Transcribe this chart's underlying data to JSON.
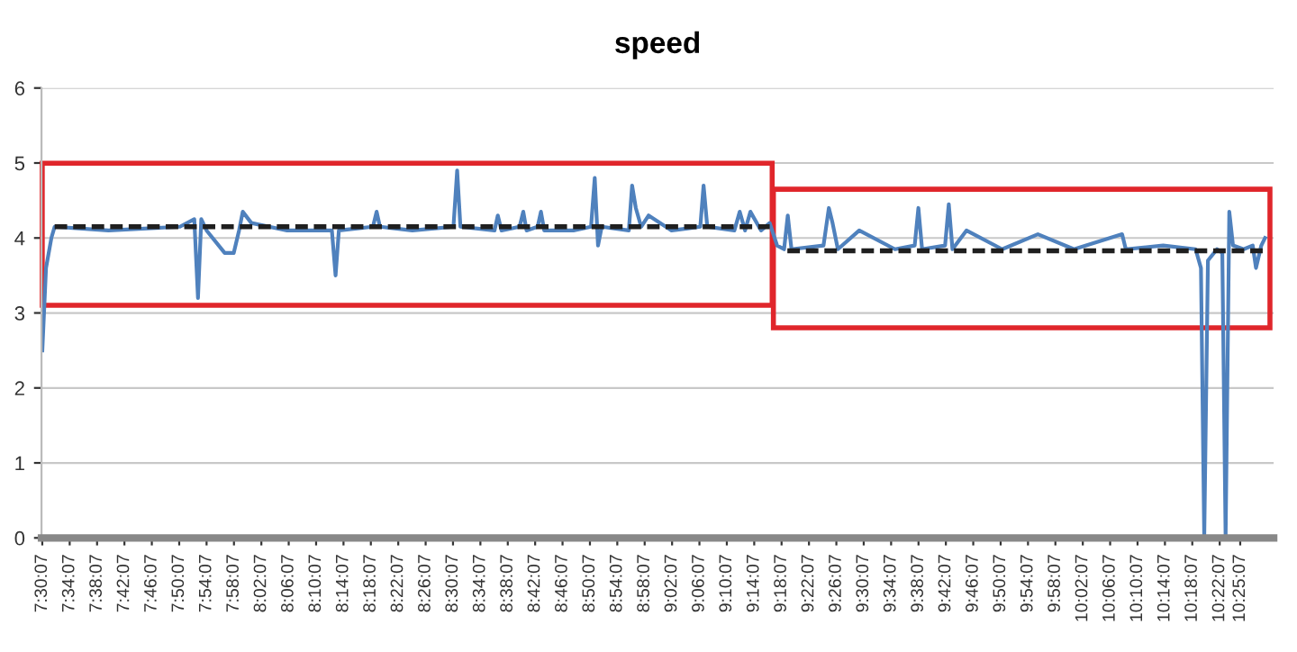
{
  "chart_data": {
    "type": "line",
    "title": "speed",
    "grid": "y",
    "marker": "none",
    "line_style": "solid",
    "xlim": [
      7.5,
      10.5
    ],
    "ylim": [
      0,
      6
    ],
    "yticks": [
      0,
      1,
      2,
      3,
      4,
      5,
      6
    ],
    "xticks": [
      {
        "value": 7.5019,
        "label": "7:30:07"
      },
      {
        "value": 7.5686,
        "label": "7:34:07"
      },
      {
        "value": 7.6353,
        "label": "7:38:07"
      },
      {
        "value": 7.7019,
        "label": "7:42:07"
      },
      {
        "value": 7.7686,
        "label": "7:46:07"
      },
      {
        "value": 7.8353,
        "label": "7:50:07"
      },
      {
        "value": 7.9019,
        "label": "7:54:07"
      },
      {
        "value": 7.9686,
        "label": "7:58:07"
      },
      {
        "value": 8.0353,
        "label": "8:02:07"
      },
      {
        "value": 8.1019,
        "label": "8:06:07"
      },
      {
        "value": 8.1686,
        "label": "8:10:07"
      },
      {
        "value": 8.2353,
        "label": "8:14:07"
      },
      {
        "value": 8.3019,
        "label": "8:18:07"
      },
      {
        "value": 8.3686,
        "label": "8:22:07"
      },
      {
        "value": 8.4353,
        "label": "8:26:07"
      },
      {
        "value": 8.5019,
        "label": "8:30:07"
      },
      {
        "value": 8.5686,
        "label": "8:34:07"
      },
      {
        "value": 8.6353,
        "label": "8:38:07"
      },
      {
        "value": 8.7019,
        "label": "8:42:07"
      },
      {
        "value": 8.7686,
        "label": "8:46:07"
      },
      {
        "value": 8.8353,
        "label": "8:50:07"
      },
      {
        "value": 8.9019,
        "label": "8:54:07"
      },
      {
        "value": 8.9686,
        "label": "8:58:07"
      },
      {
        "value": 9.0353,
        "label": "9:02:07"
      },
      {
        "value": 9.1019,
        "label": "9:06:07"
      },
      {
        "value": 9.1686,
        "label": "9:10:07"
      },
      {
        "value": 9.2353,
        "label": "9:14:07"
      },
      {
        "value": 9.3019,
        "label": "9:18:07"
      },
      {
        "value": 9.3686,
        "label": "9:22:07"
      },
      {
        "value": 9.4353,
        "label": "9:26:07"
      },
      {
        "value": 9.5019,
        "label": "9:30:07"
      },
      {
        "value": 9.5686,
        "label": "9:34:07"
      },
      {
        "value": 9.6353,
        "label": "9:38:07"
      },
      {
        "value": 9.7019,
        "label": "9:42:07"
      },
      {
        "value": 9.7686,
        "label": "9:46:07"
      },
      {
        "value": 9.8353,
        "label": "9:50:07"
      },
      {
        "value": 9.9019,
        "label": "9:54:07"
      },
      {
        "value": 9.9686,
        "label": "9:58:07"
      },
      {
        "value": 10.0353,
        "label": "10:02:07"
      },
      {
        "value": 10.1019,
        "label": "10:06:07"
      },
      {
        "value": 10.1686,
        "label": "10:10:07"
      },
      {
        "value": 10.2353,
        "label": "10:14:07"
      },
      {
        "value": 10.3019,
        "label": "10:18:07"
      },
      {
        "value": 10.3686,
        "label": "10:22:07"
      },
      {
        "value": 10.4186,
        "label": "10:25:07"
      }
    ],
    "series": [
      {
        "color": "#4f81bd",
        "x": [
          7.502,
          7.511,
          7.524,
          7.532,
          7.663,
          7.837,
          7.872,
          7.881,
          7.889,
          7.902,
          7.946,
          7.968,
          7.981,
          7.99,
          8.011,
          8.098,
          8.207,
          8.216,
          8.224,
          8.307,
          8.316,
          8.324,
          8.403,
          8.503,
          8.512,
          8.52,
          8.603,
          8.611,
          8.62,
          8.664,
          8.673,
          8.681,
          8.708,
          8.716,
          8.724,
          8.795,
          8.838,
          8.847,
          8.855,
          8.864,
          8.93,
          8.938,
          8.947,
          8.96,
          8.978,
          9.034,
          9.104,
          9.112,
          9.121,
          9.187,
          9.2,
          9.213,
          9.226,
          9.252,
          9.273,
          9.291,
          9.308,
          9.317,
          9.326,
          9.404,
          9.417,
          9.426,
          9.439,
          9.491,
          9.578,
          9.626,
          9.635,
          9.644,
          9.7,
          9.709,
          9.718,
          9.752,
          9.839,
          9.926,
          10.014,
          10.131,
          10.14,
          10.231,
          10.31,
          10.323,
          10.331,
          10.34,
          10.362,
          10.375,
          10.383,
          10.392,
          10.401,
          10.427,
          10.449,
          10.457,
          10.47,
          10.479
        ],
        "values": [
          2.5,
          3.6,
          4.0,
          4.15,
          4.1,
          4.15,
          4.25,
          3.2,
          4.25,
          4.1,
          3.8,
          3.8,
          4.1,
          4.35,
          4.2,
          4.1,
          4.1,
          3.5,
          4.1,
          4.15,
          4.35,
          4.15,
          4.1,
          4.15,
          4.9,
          4.15,
          4.1,
          4.3,
          4.1,
          4.15,
          4.35,
          4.1,
          4.15,
          4.35,
          4.1,
          4.1,
          4.15,
          4.8,
          3.9,
          4.15,
          4.1,
          4.7,
          4.4,
          4.15,
          4.3,
          4.1,
          4.15,
          4.7,
          4.15,
          4.1,
          4.35,
          4.1,
          4.35,
          4.1,
          4.2,
          3.9,
          3.85,
          4.3,
          3.85,
          3.9,
          4.4,
          4.2,
          3.85,
          4.1,
          3.85,
          3.9,
          4.4,
          3.85,
          3.9,
          4.45,
          3.85,
          4.1,
          3.85,
          4.05,
          3.85,
          4.05,
          3.85,
          3.9,
          3.85,
          3.6,
          0,
          3.7,
          3.85,
          3.8,
          0,
          4.35,
          3.9,
          3.85,
          3.9,
          3.6,
          3.9,
          4.0
        ]
      },
      {
        "color": "#1f1f1f",
        "line_style": "dashed",
        "x": [
          7.532,
          9.273
        ],
        "values": [
          4.15,
          4.15
        ]
      },
      {
        "color": "#1f1f1f",
        "line_style": "dashed",
        "x": [
          9.316,
          10.477
        ],
        "values": [
          3.83,
          3.83
        ]
      }
    ]
  }
}
